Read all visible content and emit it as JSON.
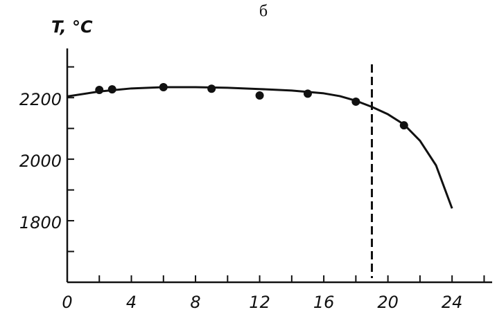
{
  "chart_data": {
    "type": "line",
    "title": "б",
    "y_label": "T, °C",
    "xlim": [
      0,
      26.5
    ],
    "ylim": [
      1600,
      2360
    ],
    "xticks": [
      0,
      4,
      8,
      12,
      16,
      20,
      24
    ],
    "xminor": [
      2,
      6,
      10,
      14,
      18,
      22,
      26
    ],
    "yticks": [
      1800,
      2000,
      2200
    ],
    "yminor": [
      1700,
      1900,
      2100,
      2300
    ],
    "vline": 19,
    "color": "#111111",
    "series": [
      {
        "style": "markers",
        "x": [
          2,
          2.8,
          6,
          9,
          12,
          15,
          18,
          21
        ],
        "values": [
          2225,
          2227,
          2234,
          2229,
          2207,
          2213,
          2187,
          2110
        ]
      },
      {
        "style": "line",
        "x": [
          0,
          2,
          4,
          6,
          8,
          10,
          12,
          14,
          16,
          17,
          18,
          19,
          20,
          21,
          22,
          23,
          24
        ],
        "values": [
          2204,
          2220,
          2230,
          2234,
          2234,
          2232,
          2228,
          2223,
          2214,
          2205,
          2190,
          2170,
          2146,
          2113,
          2060,
          1980,
          1840
        ]
      }
    ]
  }
}
